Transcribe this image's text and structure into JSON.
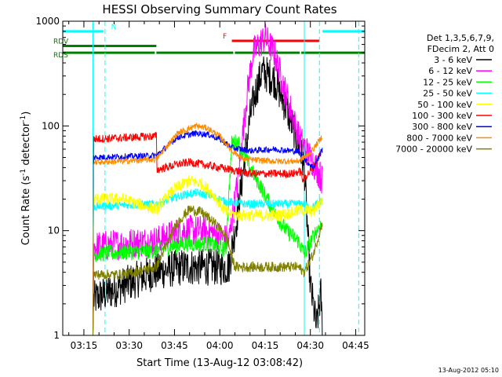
{
  "chart_data": {
    "type": "line",
    "title": "HESSI Observing Summary Count Rates",
    "xlabel": "Start Time (13-Aug-12 03:08:42)",
    "ylabel": "Count Rate (s",
    "ylabel_sup": "-1",
    "ylabel_tail": " detector",
    "ylabel_sup2": "-1",
    "ylabel_close": ")",
    "y_scale": "log",
    "ylim": [
      1,
      1000
    ],
    "xlim_minutes": [
      0,
      100
    ],
    "x_ticks": [
      {
        "t": 7,
        "label": "03:15"
      },
      {
        "t": 22,
        "label": "03:30"
      },
      {
        "t": 37,
        "label": "03:45"
      },
      {
        "t": 52,
        "label": "04:00"
      },
      {
        "t": 67,
        "label": "04:15"
      },
      {
        "t": 82,
        "label": "04:30"
      },
      {
        "t": 97,
        "label": "04:45"
      }
    ],
    "y_ticks": [
      {
        "v": 1,
        "label": "1"
      },
      {
        "v": 10,
        "label": "10"
      },
      {
        "v": 100,
        "label": "100"
      },
      {
        "v": 1000,
        "label": "1000"
      }
    ],
    "legend": {
      "header": [
        "Det 1,3,5,6,7,9,",
        "FDecim 2, Att 0"
      ],
      "entries": [
        {
          "label": "3 - 6 keV",
          "color": "#000000"
        },
        {
          "label": "6 - 12 keV",
          "color": "#ff00ff"
        },
        {
          "label": "12 - 25 keV",
          "color": "#00ff00"
        },
        {
          "label": "25 - 50 keV",
          "color": "#00ffff"
        },
        {
          "label": "50 - 100 keV",
          "color": "#ffff00"
        },
        {
          "label": "100 - 300 keV",
          "color": "#ff0000"
        },
        {
          "label": "300 - 800 keV",
          "color": "#0000ff"
        },
        {
          "label": "800 - 7000 keV",
          "color": "#ff8c00"
        },
        {
          "label": "7000 - 20000 keV",
          "color": "#808000"
        }
      ]
    },
    "flags": [
      {
        "label": "N",
        "color": "#00ffff",
        "segments": [
          [
            0,
            14
          ],
          [
            86,
            100
          ]
        ],
        "level": 800
      },
      {
        "label": "F",
        "color": "#ff0000",
        "segments": [
          [
            56,
            85
          ]
        ],
        "level": 650
      },
      {
        "label": "RDV",
        "color": "#008000",
        "segments": [
          [
            0,
            31
          ]
        ],
        "level": 580
      },
      {
        "label": "RDS",
        "color": "#008000",
        "segments": [
          [
            0,
            31
          ],
          [
            31,
            57
          ],
          [
            57,
            79
          ],
          [
            79,
            100
          ]
        ],
        "level": 500
      }
    ],
    "vlines": [
      {
        "t": 10,
        "color": "#00ffff",
        "style": "solid"
      },
      {
        "t": 14,
        "color": "#00ffff",
        "style": "dashed"
      },
      {
        "t": 80,
        "color": "#00ffff",
        "style": "solid"
      },
      {
        "t": 85,
        "color": "#00ffff",
        "style": "dashed"
      },
      {
        "t": 98,
        "color": "#00ffff",
        "style": "dashed"
      }
    ],
    "series": [
      {
        "name": "3 - 6 keV",
        "color": "#000000",
        "noise": 0.18,
        "points": [
          [
            10,
            1
          ],
          [
            10.2,
            2.2
          ],
          [
            14,
            2.5
          ],
          [
            20,
            3
          ],
          [
            30,
            4
          ],
          [
            40,
            4.5
          ],
          [
            50,
            4.5
          ],
          [
            55,
            4.5
          ],
          [
            58,
            15
          ],
          [
            62,
            120
          ],
          [
            64,
            220
          ],
          [
            66,
            330
          ],
          [
            70,
            280
          ],
          [
            74,
            150
          ],
          [
            78,
            70
          ],
          [
            80,
            40
          ],
          [
            82,
            3
          ],
          [
            84,
            1.2
          ],
          [
            85.5,
            2.5
          ],
          [
            86,
            1
          ]
        ]
      },
      {
        "name": "6 - 12 keV",
        "color": "#ff00ff",
        "noise": 0.15,
        "points": [
          [
            10,
            1
          ],
          [
            10.2,
            7
          ],
          [
            20,
            7.5
          ],
          [
            31,
            8
          ],
          [
            40,
            10
          ],
          [
            48,
            10
          ],
          [
            55,
            8
          ],
          [
            58,
            30
          ],
          [
            61,
            200
          ],
          [
            63,
            500
          ],
          [
            65,
            600
          ],
          [
            67,
            700
          ],
          [
            70,
            500
          ],
          [
            74,
            200
          ],
          [
            78,
            80
          ],
          [
            82,
            50
          ],
          [
            84,
            40
          ],
          [
            86,
            30
          ]
        ]
      },
      {
        "name": "12 - 25 keV",
        "color": "#00ff00",
        "noise": 0.08,
        "points": [
          [
            10,
            1
          ],
          [
            10.2,
            6
          ],
          [
            20,
            6.2
          ],
          [
            31,
            6.5
          ],
          [
            40,
            7.5
          ],
          [
            48,
            7.5
          ],
          [
            54,
            6.5
          ],
          [
            56,
            70
          ],
          [
            58,
            70
          ],
          [
            62,
            40
          ],
          [
            66,
            25
          ],
          [
            70,
            15
          ],
          [
            74,
            10
          ],
          [
            78,
            8
          ],
          [
            80,
            6
          ],
          [
            84,
            10
          ],
          [
            86,
            12
          ]
        ]
      },
      {
        "name": "25 - 50 keV",
        "color": "#00ffff",
        "noise": 0.04,
        "points": [
          [
            10,
            1
          ],
          [
            10.2,
            17
          ],
          [
            20,
            17.5
          ],
          [
            31,
            18
          ],
          [
            40,
            22
          ],
          [
            44,
            23
          ],
          [
            48,
            22
          ],
          [
            54,
            19
          ],
          [
            60,
            18
          ],
          [
            70,
            18
          ],
          [
            80,
            18
          ],
          [
            82,
            16
          ],
          [
            86,
            20
          ]
        ]
      },
      {
        "name": "50 - 100 keV",
        "color": "#ffff00",
        "noise": 0.06,
        "points": [
          [
            10,
            1
          ],
          [
            10.2,
            20
          ],
          [
            20,
            20
          ],
          [
            31,
            16
          ],
          [
            37,
            25
          ],
          [
            42,
            30
          ],
          [
            46,
            28
          ],
          [
            50,
            22
          ],
          [
            54,
            15
          ],
          [
            58,
            14
          ],
          [
            64,
            14
          ],
          [
            72,
            14
          ],
          [
            80,
            16
          ],
          [
            83,
            15
          ],
          [
            86,
            20
          ]
        ]
      },
      {
        "name": "100 - 300 keV",
        "color": "#ff0000",
        "noise": 0.04,
        "points": [
          [
            10,
            1
          ],
          [
            10.2,
            75
          ],
          [
            20,
            77
          ],
          [
            31,
            80
          ],
          [
            31.2,
            38
          ],
          [
            38,
            43
          ],
          [
            42,
            45
          ],
          [
            46,
            43
          ],
          [
            52,
            40
          ],
          [
            56,
            38
          ],
          [
            62,
            35
          ],
          [
            70,
            35
          ],
          [
            76,
            35
          ],
          [
            79,
            37
          ],
          [
            79.2,
            30
          ],
          [
            83,
            40
          ],
          [
            86,
            60
          ]
        ]
      },
      {
        "name": "300 - 800 keV",
        "color": "#0000ff",
        "noise": 0.03,
        "points": [
          [
            10,
            1
          ],
          [
            10.2,
            50
          ],
          [
            20,
            51
          ],
          [
            31,
            52
          ],
          [
            38,
            78
          ],
          [
            44,
            85
          ],
          [
            48,
            83
          ],
          [
            52,
            75
          ],
          [
            56,
            62
          ],
          [
            62,
            58
          ],
          [
            70,
            60
          ],
          [
            78,
            57
          ],
          [
            81,
            45
          ],
          [
            83,
            40
          ],
          [
            86,
            60
          ]
        ]
      },
      {
        "name": "800 - 7000 keV",
        "color": "#ff8c00",
        "noise": 0.03,
        "points": [
          [
            10,
            1
          ],
          [
            10.2,
            45
          ],
          [
            20,
            46
          ],
          [
            31,
            48
          ],
          [
            38,
            85
          ],
          [
            44,
            100
          ],
          [
            48,
            95
          ],
          [
            52,
            80
          ],
          [
            56,
            58
          ],
          [
            60,
            48
          ],
          [
            70,
            46
          ],
          [
            78,
            46
          ],
          [
            82,
            55
          ],
          [
            86,
            80
          ]
        ]
      },
      {
        "name": "7000 - 20000 keV",
        "color": "#808000",
        "noise": 0.05,
        "points": [
          [
            10,
            1
          ],
          [
            10.2,
            3.8
          ],
          [
            20,
            3.8
          ],
          [
            31,
            4.5
          ],
          [
            34,
            7
          ],
          [
            38,
            12
          ],
          [
            42,
            16
          ],
          [
            46,
            15
          ],
          [
            50,
            12
          ],
          [
            54,
            9
          ],
          [
            57,
            4.5
          ],
          [
            64,
            4.5
          ],
          [
            72,
            4.5
          ],
          [
            78,
            4.5
          ],
          [
            80,
            4
          ],
          [
            83,
            6
          ],
          [
            86,
            12
          ]
        ]
      }
    ]
  },
  "footer": {
    "timestamp": "13-Aug-2012 05:10"
  }
}
